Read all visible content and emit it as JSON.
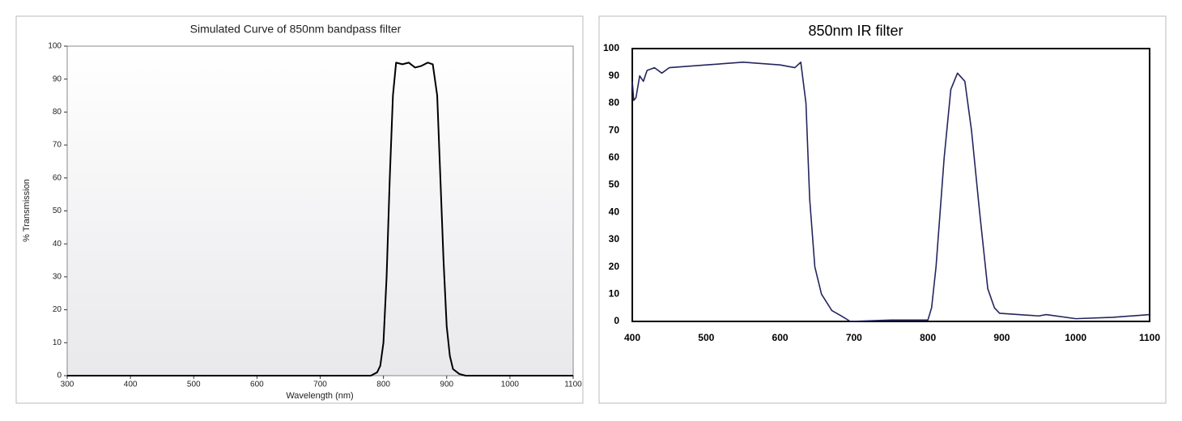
{
  "chart_data": [
    {
      "type": "line",
      "title": "Simulated Curve of 850nm bandpass filter",
      "xlabel": "Wavelength (nm)",
      "ylabel": "% Transmission",
      "x": [
        300,
        700,
        780,
        790,
        795,
        800,
        805,
        810,
        815,
        820,
        830,
        840,
        850,
        860,
        870,
        878,
        885,
        890,
        895,
        900,
        905,
        910,
        920,
        930,
        1100
      ],
      "values": [
        0,
        0,
        0,
        1,
        3,
        10,
        30,
        60,
        85,
        95,
        94.5,
        95,
        93.5,
        94,
        95,
        94.5,
        85,
        60,
        35,
        15,
        6,
        2,
        0.5,
        0,
        0
      ],
      "color": "#000000",
      "xlim": [
        300,
        1100
      ],
      "xticks": [
        300,
        400,
        500,
        600,
        700,
        800,
        900,
        1000,
        1100
      ],
      "ylim": [
        0,
        100
      ],
      "yticks": [
        0,
        10,
        20,
        30,
        40,
        50,
        60,
        70,
        80,
        90,
        100
      ],
      "grid": "y"
    },
    {
      "type": "line",
      "title": "850nm IR filter",
      "x": [
        400,
        402,
        405,
        410,
        415,
        420,
        430,
        440,
        450,
        500,
        550,
        600,
        620,
        628,
        635,
        640,
        647,
        656,
        670,
        683,
        695,
        750,
        800,
        805,
        811,
        822,
        831,
        840,
        850,
        859,
        870,
        881,
        890,
        897,
        950,
        960,
        1000,
        1050,
        1100
      ],
      "values": [
        88,
        81,
        82,
        90,
        88,
        92,
        93,
        91,
        93,
        94,
        95,
        94,
        93,
        95,
        80,
        45,
        20,
        10,
        4,
        2,
        0,
        0.5,
        0.5,
        5,
        20,
        60,
        85,
        91,
        88,
        70,
        40,
        12,
        5,
        3,
        2,
        2.5,
        1,
        1.5,
        2.5
      ],
      "color": "#25255e",
      "xlim": [
        400,
        1100
      ],
      "xticks": [
        400,
        500,
        600,
        700,
        800,
        900,
        1000,
        1100
      ],
      "ylim": [
        0,
        100
      ],
      "yticks": [
        0,
        10,
        20,
        30,
        40,
        50,
        60,
        70,
        80,
        90,
        100
      ],
      "grid": "both"
    }
  ]
}
